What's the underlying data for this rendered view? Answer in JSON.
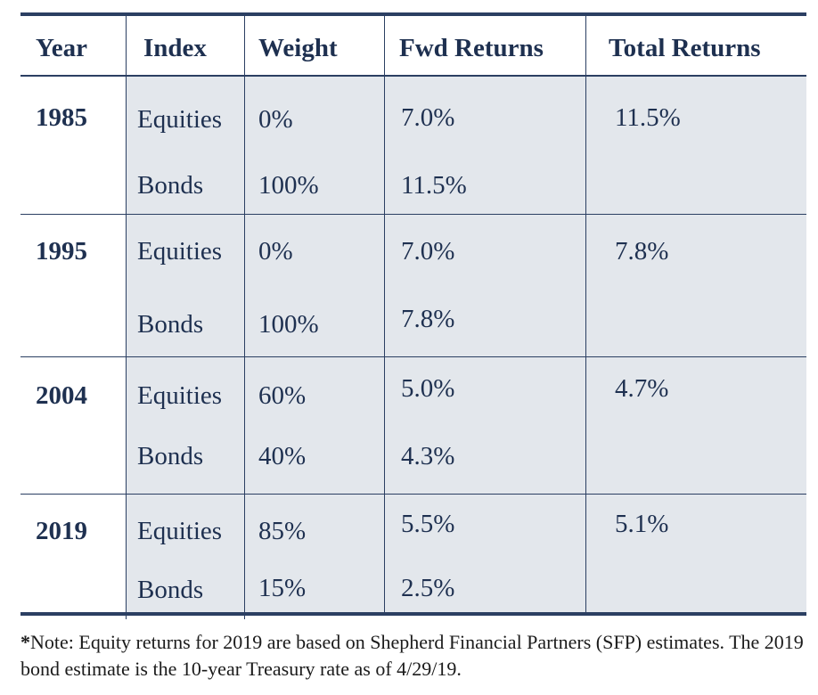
{
  "table": {
    "headers": [
      "Year",
      "Index",
      "Weight",
      "Fwd Returns",
      "Total Returns"
    ],
    "rows": [
      {
        "year": "1985",
        "total": "11.5%",
        "lines": [
          {
            "index": "Equities",
            "weight": "0%",
            "fwd": "7.0%"
          },
          {
            "index": "Bonds",
            "weight": "100%",
            "fwd": "11.5%"
          }
        ]
      },
      {
        "year": "1995",
        "total": "7.8%",
        "lines": [
          {
            "index": "Equities",
            "weight": "0%",
            "fwd": "7.0%"
          },
          {
            "index": "Bonds",
            "weight": "100%",
            "fwd": "7.8%"
          }
        ]
      },
      {
        "year": "2004",
        "total": "4.7%",
        "lines": [
          {
            "index": "Equities",
            "weight": "60%",
            "fwd": "5.0%"
          },
          {
            "index": "Bonds",
            "weight": "40%",
            "fwd": "4.3%"
          }
        ]
      },
      {
        "year": "2019",
        "total": "5.1%",
        "lines": [
          {
            "index": "Equities",
            "weight": "85%",
            "fwd": "5.5%"
          },
          {
            "index": "Bonds",
            "weight": "15%",
            "fwd": "2.5%"
          }
        ]
      }
    ]
  },
  "footnote": {
    "marker": "*",
    "text": "Note: Equity returns for 2019 are based on Shepherd Financial Partners (SFP) estimates. The 2019 bond estimate is the 10-year Treasury rate as of 4/29/19."
  },
  "colors": {
    "rule": "#2b3f62",
    "text": "#1e3050",
    "shade": "#e3e7ec"
  }
}
